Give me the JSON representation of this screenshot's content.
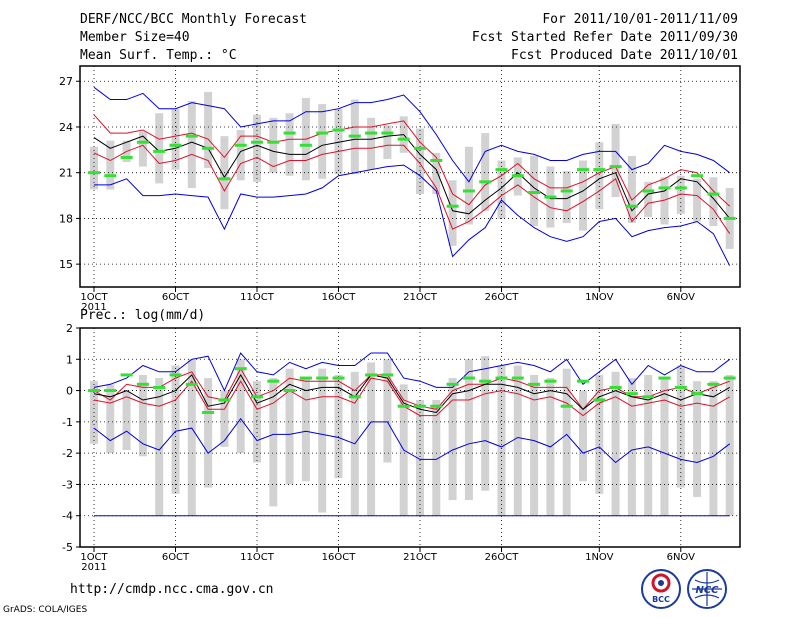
{
  "header": {
    "title": "DERF/NCC/BCC Monthly Forecast",
    "member_size": "Member Size=40",
    "variable": "Mean Surf. Temp.: °C",
    "period": "For 2011/10/01-2011/11/09",
    "start_date": "Fcst Started Refer Date 2011/09/30",
    "produced_date": "Fcst Produced Date 2011/10/01"
  },
  "footer": {
    "url": "http://cmdp.ncc.cma.gov.cn",
    "credit": "GrADS: COLA/IGES",
    "logo_bcc": "BCC",
    "logo_ncc": "NCC"
  },
  "colors": {
    "box": "#d2d2d2",
    "mean": "#000000",
    "spread": "#e0102a",
    "extreme": "#0000e0",
    "obs": "#33e033",
    "grid": "#000000"
  },
  "chart_data": [
    {
      "type": "box-spread",
      "title": "Mean Surf. Temp.: °C",
      "ylabel": "°C",
      "ylim": [
        13.5,
        28
      ],
      "yticks": [
        15,
        18,
        21,
        24,
        27
      ],
      "xtick_labels": [
        "1OCT",
        "6OCT",
        "11OCT",
        "16OCT",
        "21OCT",
        "26OCT",
        "1NOV",
        "6NOV"
      ],
      "xtick_days": [
        1,
        6,
        11,
        16,
        21,
        26,
        32,
        37
      ],
      "year_label": "2011",
      "days": 40,
      "series": {
        "max": [
          26.6,
          25.8,
          25.8,
          26.2,
          25.2,
          25.2,
          25.6,
          25.4,
          25.2,
          24.0,
          24.2,
          24.4,
          24.4,
          25.0,
          25.0,
          25.2,
          25.6,
          25.6,
          25.8,
          26.1,
          25.0,
          23.5,
          21.8,
          20.4,
          22.4,
          22.8,
          22.4,
          22.2,
          21.8,
          21.8,
          22.2,
          22.4,
          22.4,
          21.2,
          21.6,
          22.8,
          22.4,
          22.2,
          21.8,
          21.0
        ],
        "upper": [
          24.8,
          23.6,
          23.6,
          23.8,
          23.2,
          23.4,
          23.6,
          23.2,
          22.0,
          23.4,
          23.4,
          23.0,
          23.2,
          23.2,
          23.6,
          23.8,
          24.0,
          24.0,
          24.2,
          24.4,
          23.0,
          22.0,
          19.6,
          18.9,
          20.2,
          20.8,
          21.6,
          20.6,
          20.0,
          20.0,
          20.4,
          21.0,
          21.4,
          19.2,
          20.2,
          20.6,
          21.2,
          21.0,
          19.8,
          18.8
        ],
        "mean": [
          23.3,
          22.6,
          23.0,
          23.4,
          22.4,
          22.6,
          23.0,
          22.6,
          20.7,
          22.4,
          22.8,
          22.4,
          22.2,
          22.2,
          22.8,
          23.0,
          23.2,
          23.2,
          23.4,
          23.5,
          22.2,
          21.2,
          18.5,
          18.3,
          19.2,
          20.0,
          21.0,
          20.0,
          19.3,
          19.3,
          19.8,
          20.6,
          21.0,
          18.5,
          19.6,
          19.8,
          20.6,
          20.4,
          19.3,
          18.0
        ],
        "lower": [
          22.3,
          21.8,
          22.4,
          22.8,
          21.6,
          21.8,
          22.2,
          21.8,
          19.8,
          21.6,
          22.0,
          21.4,
          21.8,
          21.8,
          22.2,
          22.4,
          22.6,
          22.6,
          22.8,
          22.8,
          21.6,
          20.0,
          17.3,
          17.8,
          18.6,
          19.5,
          20.2,
          19.4,
          18.7,
          18.5,
          19.1,
          19.8,
          20.6,
          17.8,
          19.0,
          19.2,
          19.6,
          19.5,
          18.6,
          17.0
        ],
        "min": [
          20.2,
          20.2,
          20.6,
          19.5,
          19.5,
          19.6,
          19.5,
          19.4,
          17.3,
          19.6,
          19.4,
          19.4,
          19.5,
          19.6,
          20.0,
          20.8,
          21.0,
          21.2,
          21.4,
          21.5,
          20.8,
          19.8,
          15.5,
          16.6,
          17.4,
          19.2,
          18.2,
          17.4,
          16.8,
          16.5,
          16.8,
          17.8,
          18.0,
          16.8,
          17.2,
          17.4,
          17.5,
          17.8,
          17.0,
          14.9
        ],
        "box_top": [
          22.7,
          23.1,
          23.1,
          23.7,
          24.9,
          25.2,
          25.7,
          26.3,
          23.4,
          23.8,
          24.8,
          24.6,
          24.9,
          25.9,
          25.5,
          25.2,
          25.8,
          24.6,
          24.1,
          24.7,
          23.9,
          22.3,
          20.5,
          22.7,
          23.6,
          21.8,
          22.0,
          22.1,
          21.4,
          21.1,
          21.8,
          23.0,
          24.2,
          22.1,
          20.4,
          20.7,
          20.8,
          20.6,
          20.7,
          20.0
        ],
        "box_bottom": [
          19.9,
          19.9,
          21.7,
          21.4,
          20.3,
          21.2,
          20.0,
          21.3,
          18.6,
          20.5,
          20.4,
          21.0,
          20.8,
          20.5,
          20.6,
          20.9,
          20.9,
          21.2,
          21.9,
          22.3,
          19.6,
          19.6,
          16.2,
          17.6,
          18.5,
          18.0,
          19.5,
          17.5,
          17.4,
          17.7,
          17.2,
          18.6,
          19.4,
          17.7,
          18.1,
          17.6,
          18.3,
          17.8,
          17.5,
          16.0
        ],
        "obs": [
          21.0,
          20.8,
          22.0,
          23.0,
          22.4,
          22.8,
          23.4,
          22.6,
          20.6,
          22.8,
          23.0,
          23.0,
          23.6,
          22.8,
          23.6,
          23.8,
          23.4,
          23.6,
          23.6,
          23.2,
          22.6,
          21.8,
          18.8,
          19.8,
          20.4,
          21.2,
          20.8,
          19.7,
          19.4,
          19.8,
          21.2,
          21.2,
          21.4,
          18.8,
          19.8,
          20.0,
          20.0,
          20.8,
          19.6,
          18.0
        ]
      }
    },
    {
      "type": "box-spread",
      "title": "Prec.: log(mm/d)",
      "ylabel": "log(mm/d)",
      "ylim": [
        -5,
        2
      ],
      "yticks": [
        2,
        1,
        0,
        -1,
        -2,
        -3,
        -4,
        -5
      ],
      "xtick_labels": [
        "1OCT",
        "6OCT",
        "11OCT",
        "16OCT",
        "21OCT",
        "26OCT",
        "1NOV",
        "6NOV"
      ],
      "xtick_days": [
        1,
        6,
        11,
        16,
        21,
        26,
        32,
        37
      ],
      "year_label": "2011",
      "days": 40,
      "series": {
        "max": [
          0.1,
          0.2,
          0.4,
          0.8,
          0.6,
          0.6,
          1.0,
          1.1,
          0.0,
          1.2,
          0.6,
          0.5,
          0.9,
          0.7,
          0.9,
          0.8,
          0.8,
          1.2,
          1.2,
          0.4,
          0.3,
          0.1,
          0.1,
          0.6,
          0.7,
          0.8,
          0.9,
          0.8,
          0.6,
          1.0,
          0.2,
          0.6,
          1.0,
          0.2,
          0.8,
          0.5,
          0.8,
          0.6,
          0.6,
          1.0
        ],
        "upper": [
          0.0,
          -0.3,
          0.2,
          0.1,
          0.1,
          0.4,
          0.6,
          -0.2,
          -0.3,
          0.7,
          -0.2,
          0.0,
          0.4,
          0.3,
          0.3,
          0.3,
          0.0,
          0.5,
          0.5,
          -0.3,
          -0.5,
          -0.6,
          0.0,
          0.2,
          0.2,
          0.4,
          0.3,
          0.1,
          0.1,
          0.1,
          -0.6,
          0.0,
          0.1,
          -0.2,
          -0.2,
          0.0,
          0.1,
          -0.1,
          0.1,
          0.3
        ],
        "mean": [
          -0.1,
          -0.2,
          0.0,
          -0.3,
          -0.2,
          0.0,
          0.5,
          -0.5,
          -0.4,
          0.5,
          -0.4,
          -0.2,
          0.2,
          0.0,
          0.1,
          0.1,
          -0.2,
          0.5,
          0.4,
          -0.4,
          -0.6,
          -0.7,
          -0.1,
          0.0,
          0.2,
          0.2,
          0.1,
          -0.1,
          0.0,
          -0.1,
          -0.6,
          -0.2,
          0.0,
          -0.2,
          -0.3,
          -0.1,
          -0.3,
          -0.1,
          -0.2,
          0.1
        ],
        "lower": [
          -0.3,
          -0.4,
          -0.2,
          -0.4,
          -0.5,
          -0.3,
          0.3,
          -0.6,
          -0.6,
          0.3,
          -0.6,
          -0.4,
          0.0,
          -0.3,
          -0.2,
          -0.2,
          -0.4,
          0.4,
          0.3,
          -0.5,
          -0.8,
          -0.8,
          -0.3,
          -0.3,
          -0.1,
          0.0,
          -0.1,
          -0.3,
          -0.2,
          -0.4,
          -0.8,
          -0.4,
          -0.2,
          -0.5,
          -0.4,
          -0.3,
          -0.5,
          -0.4,
          -0.5,
          -0.2
        ],
        "min": [
          -1.2,
          -1.6,
          -1.3,
          -1.7,
          -1.9,
          -1.3,
          -1.2,
          -2.0,
          -1.6,
          -0.9,
          -1.6,
          -1.4,
          -1.4,
          -1.3,
          -1.4,
          -1.5,
          -1.7,
          -1.0,
          -1.0,
          -1.9,
          -2.2,
          -2.2,
          -1.9,
          -1.7,
          -1.6,
          -1.8,
          -1.5,
          -1.6,
          -1.8,
          -1.4,
          -2.0,
          -1.8,
          -2.3,
          -1.9,
          -1.8,
          -2.0,
          -2.2,
          -2.3,
          -2.1,
          -1.7
        ],
        "box_top": [
          0.3,
          0.2,
          0.0,
          0.5,
          0.4,
          0.8,
          1.0,
          0.4,
          0.0,
          1.0,
          0.3,
          0.4,
          0.7,
          0.4,
          0.7,
          0.5,
          0.6,
          0.9,
          1.0,
          0.2,
          -0.3,
          -0.3,
          0.4,
          1.0,
          1.1,
          0.8,
          0.8,
          0.5,
          0.4,
          0.7,
          0.0,
          0.5,
          0.6,
          0.4,
          0.5,
          0.4,
          0.8,
          0.3,
          0.3,
          0.5
        ],
        "box_bottom": [
          -1.7,
          -2.0,
          -1.9,
          -2.1,
          -4.0,
          -3.3,
          -4.0,
          -3.1,
          -1.8,
          -2.0,
          -2.3,
          -3.7,
          -3.0,
          -2.9,
          -3.9,
          -2.8,
          -4.0,
          -4.0,
          -2.3,
          -4.0,
          -4.0,
          -4.0,
          -3.5,
          -3.5,
          -3.2,
          -4.0,
          -4.0,
          -4.0,
          -4.0,
          -4.0,
          -2.9,
          -3.3,
          -4.0,
          -4.0,
          -4.0,
          -4.0,
          -3.1,
          -3.4,
          -4.0,
          -4.0
        ],
        "obs": [
          0.0,
          0.0,
          0.5,
          0.2,
          0.1,
          0.5,
          0.2,
          -0.7,
          -0.3,
          0.7,
          -0.2,
          0.3,
          0.0,
          0.4,
          0.4,
          0.4,
          -0.2,
          0.5,
          0.5,
          -0.5,
          -0.5,
          -0.5,
          0.2,
          0.4,
          0.3,
          0.4,
          0.4,
          0.2,
          0.3,
          -0.5,
          0.3,
          -0.3,
          0.1,
          -0.1,
          -0.2,
          0.4,
          0.1,
          -0.1,
          0.2,
          0.4
        ],
        "floor": -4.0
      }
    }
  ]
}
